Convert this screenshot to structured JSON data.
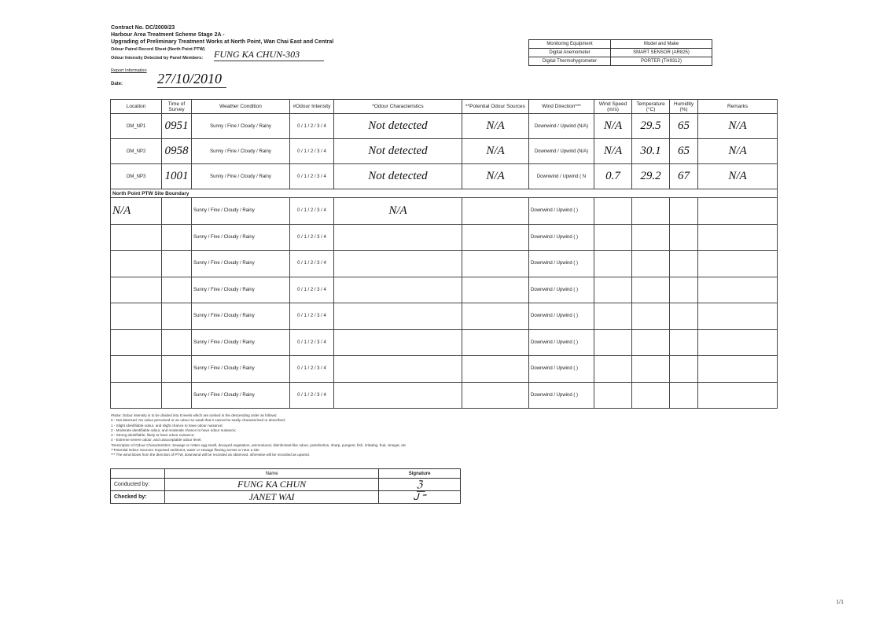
{
  "header": {
    "contract": "Contract No. DC/2009/23",
    "scheme": "Harbour Area Treatment Scheme Stage 2A -",
    "project": "Upgrading of Preliminary Treatment Works at North Point, Wan Chai East and Central",
    "sheet": "Odour Patrol Record Sheet (North Point PTW)",
    "panel_label": "Odour Intensity Detected by Panel Members:",
    "panel_value": "FUNG KA CHUN-303",
    "report_info": "Report Information",
    "date_label": "Date:",
    "date_value": "27/10/2010"
  },
  "equipment": {
    "headers": [
      "Monitoring Equipment",
      "Model and Make"
    ],
    "rows": [
      [
        "Digital Anemometer",
        "SMART SENSOR (AR825)"
      ],
      [
        "Digital Thermohygrometer",
        "PORTER (TH9312)"
      ]
    ]
  },
  "table": {
    "headers": [
      "Location",
      "Time of Survey",
      "Weather Condition",
      "#Odour Intensity",
      "*Odour Characteristics",
      "**Potential Odour Sources",
      "Wind Direction***",
      "Wind Speed (m/s)",
      "Temperature (°C)",
      "Humidity (%)",
      "Remarks"
    ],
    "rows": [
      {
        "location": "OM_NP1",
        "time": "0951",
        "weather": "Sunny / Fine / Cloudy / Rainy",
        "weather_selected": "Sunny",
        "intensity": "0 / 1 / 2 / 3 / 4",
        "intensity_selected": "0",
        "characteristics": "Not detected",
        "sources": "N/A",
        "wind_dir": "Downwind / Upwind (N/A)",
        "wind_speed": "N/A",
        "temperature": "29.5",
        "humidity": "65",
        "remarks": "N/A"
      },
      {
        "location": "OM_NP2",
        "time": "0958",
        "weather": "Sunny / Fine / Cloudy / Rainy",
        "weather_selected": "Sunny",
        "intensity": "0 / 1 / 2 / 3 / 4",
        "intensity_selected": "0",
        "characteristics": "Not detected",
        "sources": "N/A",
        "wind_dir": "Downwind / Upwind (N/A)",
        "wind_speed": "N/A",
        "temperature": "30.1",
        "humidity": "65",
        "remarks": "N/A"
      },
      {
        "location": "OM_NP3",
        "time": "1001",
        "weather": "Sunny / Fine / Cloudy / Rainy",
        "weather_selected": "Sunny",
        "intensity": "0 / 1 / 2 / 3 / 4",
        "intensity_selected": "0",
        "characteristics": "Not detected",
        "sources": "N/A",
        "wind_dir": "Downwind / Upwind ( N",
        "wind_speed": "0.7",
        "temperature": "29.2",
        "humidity": "67",
        "remarks": "N/A"
      }
    ],
    "section": "North Point PTW Site Boundary",
    "boundary_rows": [
      {
        "location": "N/A",
        "weather": "Sunny / Fine / Cloudy / Rainy",
        "intensity": "0 / 1 / 2 / 3 / 4",
        "characteristics": "N/A",
        "wind_dir": "Downwind / Upwind (        )"
      },
      {
        "location": "",
        "weather": "Sunny / Fine / Cloudy / Rainy",
        "intensity": "0 / 1 / 2 / 3 / 4",
        "characteristics": "",
        "wind_dir": "Downwind / Upwind (        )"
      },
      {
        "location": "",
        "weather": "Sunny / Fine / Cloudy / Rainy",
        "intensity": "0 / 1 / 2 / 3 / 4",
        "characteristics": "",
        "wind_dir": "Downwind / Upwind (        )"
      },
      {
        "location": "",
        "weather": "Sunny / Fine / Cloudy / Rainy",
        "intensity": "0 / 1 / 2 / 3 / 4",
        "characteristics": "",
        "wind_dir": "Downwind / Upwind (        )"
      },
      {
        "location": "",
        "weather": "Sunny / Fine / Cloudy / Rainy",
        "intensity": "0 / 1 / 2 / 3 / 4",
        "characteristics": "",
        "wind_dir": "Downwind / Upwind (        )"
      },
      {
        "location": "",
        "weather": "Sunny / Fine / Cloudy / Rainy",
        "intensity": "0 / 1 / 2 / 3 / 4",
        "characteristics": "",
        "wind_dir": "Downwind / Upwind (        )"
      },
      {
        "location": "",
        "weather": "Sunny / Fine / Cloudy / Rainy",
        "intensity": "0 / 1 / 2 / 3 / 4",
        "characteristics": "",
        "wind_dir": "Downwind / Upwind (        )"
      },
      {
        "location": "",
        "weather": "Sunny / Fine / Cloudy / Rainy",
        "intensity": "0 / 1 / 2 / 3 / 4",
        "characteristics": "",
        "wind_dir": "Downwind / Upwind (        )"
      }
    ]
  },
  "notes": [
    "#Note: Odour intensity is to be divided into 5 levels which are ranked in the descending order as follows:",
    "0 - Not detected. No odour perceived or an odour so weak that it cannot be easily characterized or described;",
    "1 - Slight identifiable odour, and slight chance to have odour nuisance;",
    "2 - Moderate identifiable odour, and moderate chance to have odour nuisance;",
    "3 - Strong identifiable, likely to have odour nuisance;",
    "4 - Extreme severe odour, and unacceptable odour level.",
    "*Description of Odour Characteristics: Sewage or rotten egg smell, decayed vegetation, ammoniacal, disinfectant-like odour, putrefaction, sharp, pungent, fish, irritating, fruit, vinegar, etc",
    "**Potential Odour Sources: Exposed sediment, water or sewage flowing across or near a site",
    "*** The wind blows from the direction of PTW, downwind will be recorded as observed, otherwise will be recorded as upwind."
  ],
  "signoff": {
    "name_header": "Name",
    "signature_header": "Signature",
    "conducted_label": "Conducted by:",
    "conducted_name": "FUNG KA CHUN",
    "checked_label": "Checked by:",
    "checked_name": "JANET WAI"
  },
  "page_number": "1/1"
}
